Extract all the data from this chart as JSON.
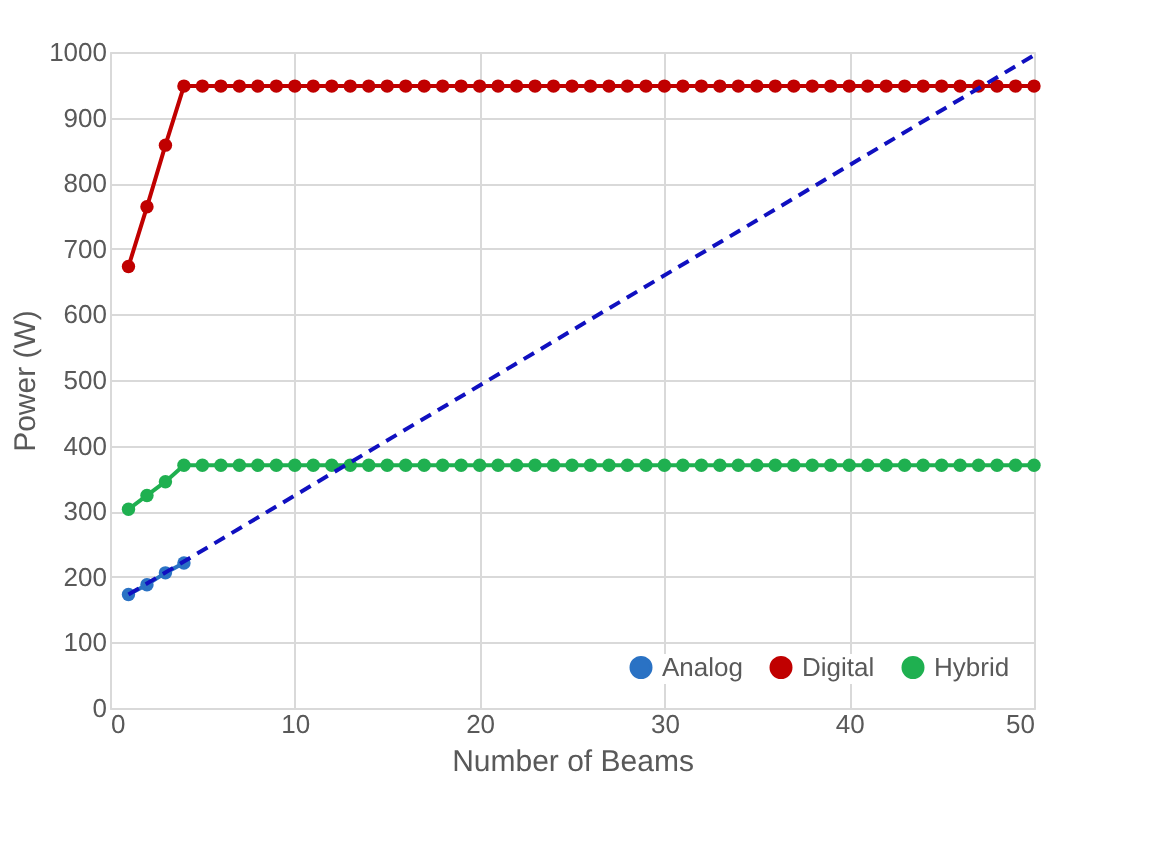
{
  "chart_data": {
    "type": "line",
    "xlabel": "Number of Beams",
    "ylabel": "Power (W)",
    "xlim": [
      0,
      50
    ],
    "xticks": [
      0,
      10,
      20,
      30,
      40,
      50
    ],
    "ylim": [
      0,
      1000
    ],
    "yticks": [
      0,
      100,
      200,
      300,
      400,
      500,
      600,
      700,
      800,
      900,
      1000
    ],
    "grid": true,
    "legend": "bottom right",
    "marker": "circle",
    "line_style": "solid",
    "series": [
      {
        "name": "Analog",
        "color": "#2a72c4",
        "x": [
          1,
          2,
          3,
          4
        ],
        "values": [
          173,
          188,
          206,
          221
        ]
      },
      {
        "name": "Digital",
        "color": "#c00000",
        "x": [
          1,
          2,
          3,
          4,
          5,
          6,
          7,
          8,
          9,
          10,
          11,
          12,
          13,
          14,
          15,
          16,
          17,
          18,
          19,
          20,
          21,
          22,
          23,
          24,
          25,
          26,
          27,
          28,
          29,
          30,
          31,
          32,
          33,
          34,
          35,
          36,
          37,
          38,
          39,
          40,
          41,
          42,
          43,
          44,
          45,
          46,
          47,
          48,
          49,
          50
        ],
        "values": [
          673,
          764,
          858,
          948,
          948,
          948,
          948,
          948,
          948,
          948,
          948,
          948,
          948,
          948,
          948,
          948,
          948,
          948,
          948,
          948,
          948,
          948,
          948,
          948,
          948,
          948,
          948,
          948,
          948,
          948,
          948,
          948,
          948,
          948,
          948,
          948,
          948,
          948,
          948,
          948,
          948,
          948,
          948,
          948,
          948,
          948,
          948,
          948,
          948,
          948
        ]
      },
      {
        "name": "Hybrid",
        "color": "#1fb050",
        "x": [
          1,
          2,
          3,
          4,
          5,
          6,
          7,
          8,
          9,
          10,
          11,
          12,
          13,
          14,
          15,
          16,
          17,
          18,
          19,
          20,
          21,
          22,
          23,
          24,
          25,
          26,
          27,
          28,
          29,
          30,
          31,
          32,
          33,
          34,
          35,
          36,
          37,
          38,
          39,
          40,
          41,
          42,
          43,
          44,
          45,
          46,
          47,
          48,
          49,
          50
        ],
        "values": [
          303,
          324,
          345,
          370,
          370,
          370,
          370,
          370,
          370,
          370,
          370,
          370,
          370,
          370,
          370,
          370,
          370,
          370,
          370,
          370,
          370,
          370,
          370,
          370,
          370,
          370,
          370,
          370,
          370,
          370,
          370,
          370,
          370,
          370,
          370,
          370,
          370,
          370,
          370,
          370,
          370,
          370,
          370,
          370,
          370,
          370,
          370,
          370,
          370,
          370
        ]
      },
      {
        "color": "#1010c0",
        "x": [
          1,
          50
        ],
        "values": [
          173,
          995
        ],
        "marker": "none",
        "line_style": "dashed"
      }
    ]
  }
}
